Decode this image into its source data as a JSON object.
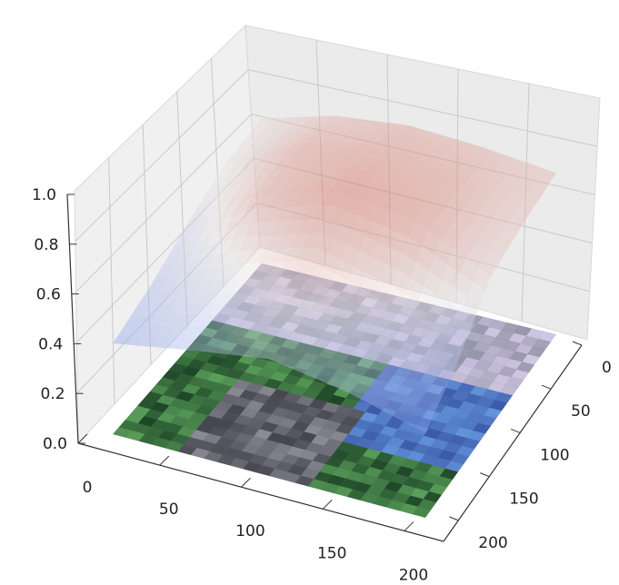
{
  "chart_data": {
    "type": "surface3d",
    "title": "",
    "xlabel": "",
    "ylabel": "",
    "zlabel": "",
    "x_ticks": [
      "0",
      "50",
      "100",
      "150",
      "200"
    ],
    "y_ticks": [
      "0",
      "50",
      "100",
      "150",
      "200"
    ],
    "z_ticks": [
      "0.0",
      "0.2",
      "0.4",
      "0.6",
      "0.8",
      "1.0"
    ],
    "xlim": [
      0,
      224
    ],
    "ylim": [
      0,
      224
    ],
    "zlim": [
      0,
      1
    ],
    "grid": true,
    "colormap": "coolwarm",
    "floor": "image",
    "surface_samples": {
      "x": [
        0,
        56,
        112,
        168,
        224
      ],
      "y": [
        0,
        56,
        112,
        168,
        224
      ],
      "z": [
        [
          0.72,
          0.82,
          0.86,
          0.84,
          0.8
        ],
        [
          0.7,
          0.88,
          0.92,
          0.9,
          0.78
        ],
        [
          0.62,
          0.86,
          0.97,
          0.92,
          0.74
        ],
        [
          0.52,
          0.66,
          0.78,
          0.66,
          0.55
        ],
        [
          0.45,
          0.52,
          0.58,
          0.52,
          0.42
        ]
      ]
    }
  }
}
